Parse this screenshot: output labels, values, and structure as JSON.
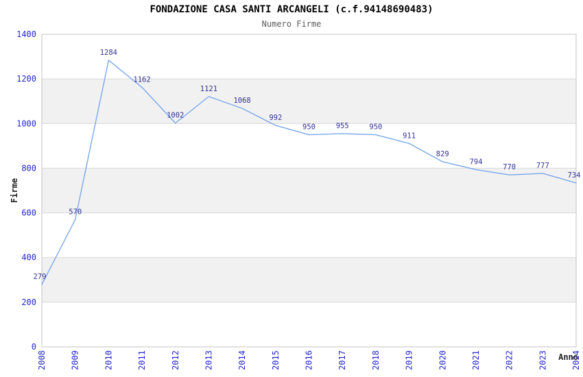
{
  "header": {
    "title": "FONDAZIONE CASA SANTI ARCANGELI (c.f.94148690483)",
    "subtitle": "Numero Firme"
  },
  "chart_data": {
    "type": "line",
    "title": "FONDAZIONE CASA SANTI ARCANGELI (c.f.94148690483)",
    "subtitle": "Numero Firme",
    "xlabel": "Anno",
    "ylabel": "Firme",
    "categories": [
      "2008",
      "2009",
      "2010",
      "2011",
      "2012",
      "2013",
      "2014",
      "2015",
      "2016",
      "2017",
      "2018",
      "2019",
      "2020",
      "2021",
      "2022",
      "2023",
      "2024"
    ],
    "series": [
      {
        "name": "Numero Firme",
        "values": [
          279,
          570,
          1284,
          1162,
          1002,
          1121,
          1068,
          992,
          950,
          955,
          950,
          911,
          829,
          794,
          770,
          777,
          734
        ]
      }
    ],
    "data_labels": [
      "279",
      "570",
      "1284",
      "1162",
      "1002",
      "1121",
      "1068",
      "992",
      "950",
      "955",
      "950",
      "911",
      "829",
      "794",
      "770",
      "777",
      "734"
    ],
    "ylim": [
      0,
      1400
    ],
    "ytick_interval": 200,
    "yticks": [
      "0",
      "200",
      "400",
      "600",
      "800",
      "1000",
      "1200",
      "1400"
    ],
    "grid": true,
    "legend": false,
    "banded_background": true
  },
  "colors": {
    "line": "#79a8ec",
    "tick_label": "#2525cc",
    "data_label": "#333399",
    "band": "#f1f1f1",
    "grid": "#d9d9d9",
    "border": "#c3c3c3",
    "axis_label": "#222222",
    "background": "#ffffff"
  }
}
